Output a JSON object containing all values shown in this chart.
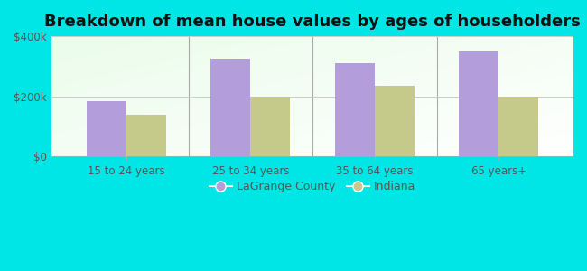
{
  "title": "Breakdown of mean house values by ages of householders",
  "categories": [
    "15 to 24 years",
    "25 to 34 years",
    "35 to 64 years",
    "65 years+"
  ],
  "lagrange_values": [
    185000,
    325000,
    310000,
    350000
  ],
  "indiana_values": [
    140000,
    200000,
    235000,
    200000
  ],
  "lagrange_color": "#b39ddb",
  "indiana_color": "#c5c98a",
  "background_color": "#00e5e5",
  "ylim": [
    0,
    400000
  ],
  "ytick_labels": [
    "$0",
    "$200k",
    "$400k"
  ],
  "ytick_values": [
    0,
    200000,
    400000
  ],
  "bar_width": 0.32,
  "legend_labels": [
    "LaGrange County",
    "Indiana"
  ],
  "title_fontsize": 13,
  "legend_fontsize": 9,
  "tick_fontsize": 8.5,
  "gradient_colors": [
    "#e8f5e0",
    "#f8fff8",
    "#ffffff"
  ],
  "separator_color": "#aaaaaa",
  "grid_color": "#cccccc"
}
